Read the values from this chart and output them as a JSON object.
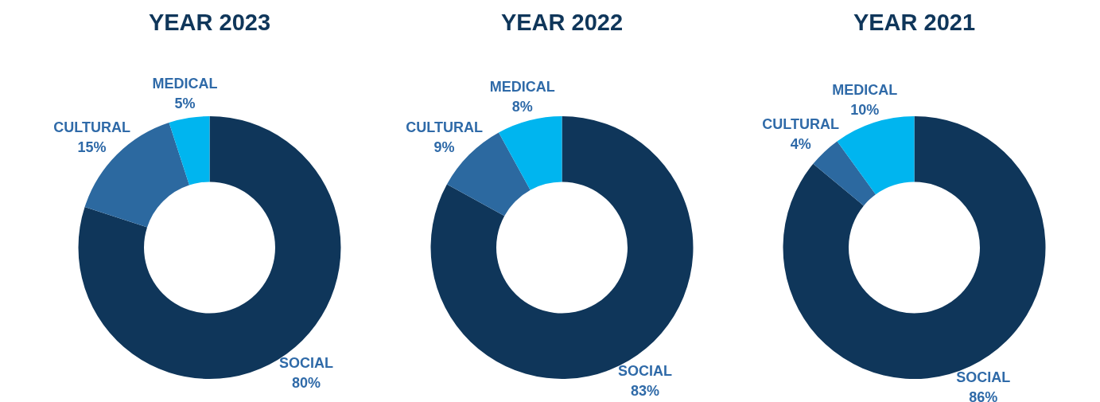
{
  "chart_data": [
    {
      "type": "donut",
      "title": "YEAR 2023",
      "categories": [
        "SOCIAL",
        "CULTURAL",
        "MEDICAL"
      ],
      "values": [
        80,
        15,
        5
      ],
      "colors": [
        "#0f365a",
        "#2c69a0",
        "#00b5ef"
      ],
      "value_labels": [
        "80%",
        "15%",
        "5%"
      ]
    },
    {
      "type": "donut",
      "title": "YEAR 2022",
      "categories": [
        "SOCIAL",
        "CULTURAL",
        "MEDICAL"
      ],
      "values": [
        83,
        9,
        8
      ],
      "colors": [
        "#0f365a",
        "#2c69a0",
        "#00b5ef"
      ],
      "value_labels": [
        "83%",
        "9%",
        "8%"
      ]
    },
    {
      "type": "donut",
      "title": "YEAR 2021",
      "categories": [
        "SOCIAL",
        "CULTURAL",
        "MEDICAL"
      ],
      "values": [
        86,
        4,
        10
      ],
      "colors": [
        "#0f365a",
        "#2c69a0",
        "#00b5ef"
      ],
      "value_labels": [
        "86%",
        "4%",
        "10%"
      ]
    }
  ]
}
